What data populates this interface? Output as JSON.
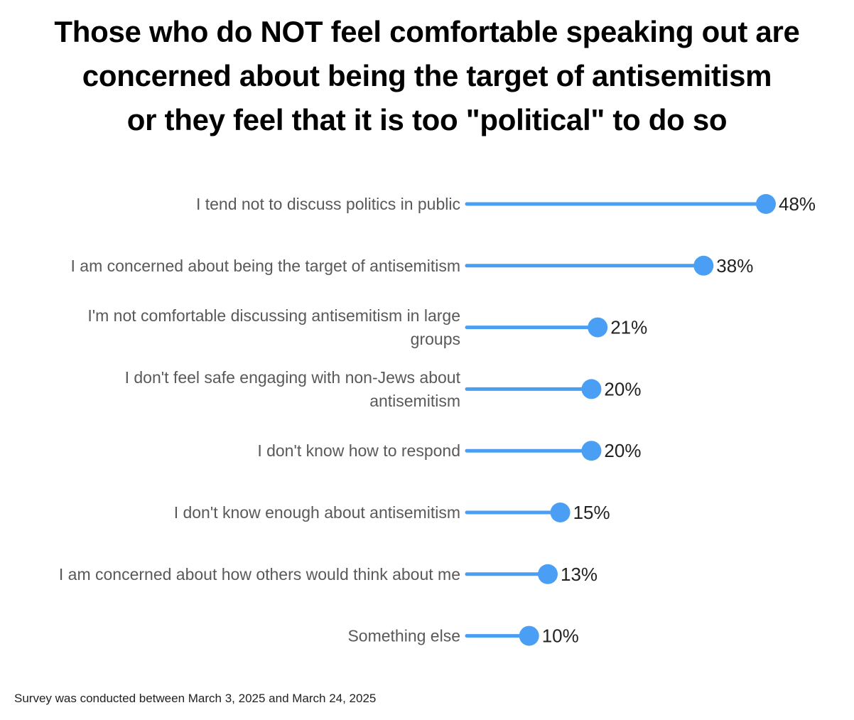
{
  "chart_data": {
    "type": "bar",
    "subtype": "lollipop",
    "title_lines": [
      "Those who do NOT feel comfortable speaking out are",
      "concerned about being the target of antisemitism",
      "or they feel that it is too \"political\" to do so"
    ],
    "categories": [
      [
        "I tend not to discuss politics in public"
      ],
      [
        "I am concerned about being the target of antisemitism"
      ],
      [
        "I'm not comfortable discussing antisemitism in large",
        "groups"
      ],
      [
        "I don't feel safe engaging with non-Jews about",
        "antisemitism"
      ],
      [
        "I don't know how to respond"
      ],
      [
        "I don't know enough about antisemitism"
      ],
      [
        "I am concerned about how others would think about me"
      ],
      [
        "Something else"
      ]
    ],
    "values": [
      48,
      38,
      21,
      20,
      20,
      15,
      13,
      10
    ],
    "value_labels": [
      "48%",
      "38%",
      "21%",
      "20%",
      "20%",
      "15%",
      "13%",
      "10%"
    ],
    "xlim": [
      0,
      48
    ],
    "color": "#4a9ff5",
    "grid": false,
    "legend": "none",
    "footnote": "Survey was conducted between March 3, 2025 and March 24, 2025"
  }
}
